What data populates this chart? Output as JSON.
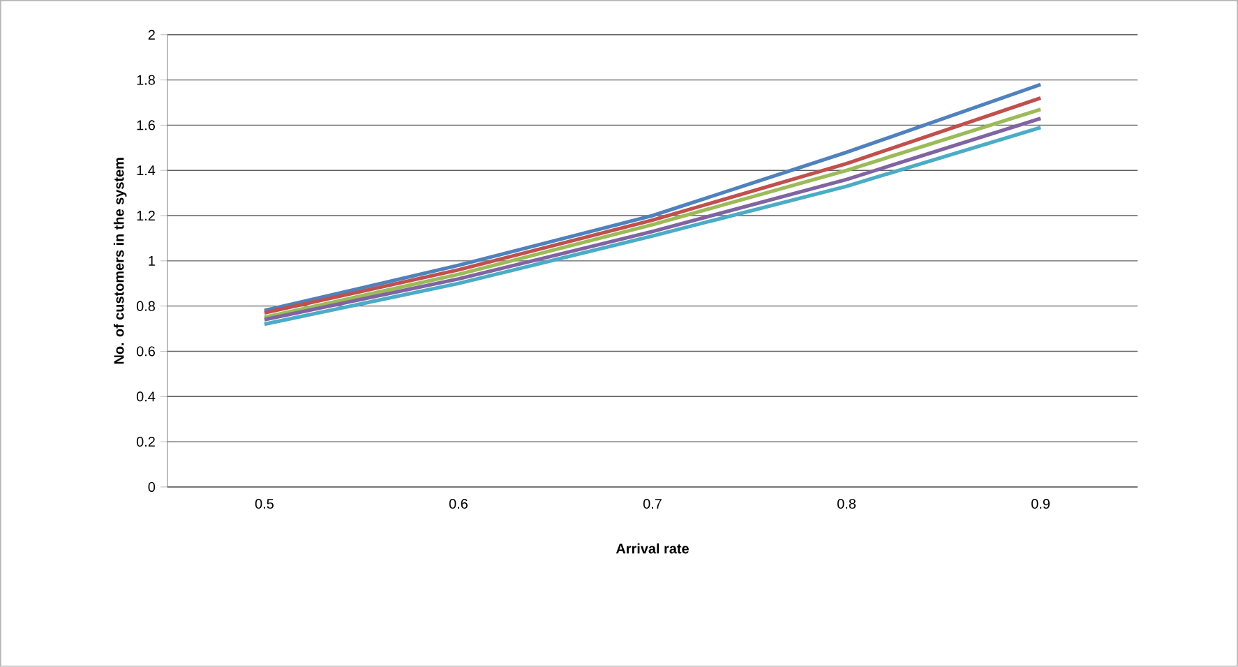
{
  "chart_data": {
    "type": "line",
    "xlabel": "Arrival rate",
    "ylabel": "No. of customers in the system",
    "categories": [
      "0.5",
      "0.6",
      "0.7",
      "0.8",
      "0.9"
    ],
    "series": [
      {
        "color": "#4f81bd",
        "values": [
          0.78,
          0.98,
          1.2,
          1.48,
          1.78
        ]
      },
      {
        "color": "#c0504d",
        "values": [
          0.77,
          0.96,
          1.18,
          1.43,
          1.72
        ]
      },
      {
        "color": "#9bbb59",
        "values": [
          0.75,
          0.94,
          1.16,
          1.4,
          1.67
        ]
      },
      {
        "color": "#8064a2",
        "values": [
          0.74,
          0.92,
          1.13,
          1.36,
          1.63
        ]
      },
      {
        "color": "#4bacc6",
        "values": [
          0.72,
          0.9,
          1.11,
          1.33,
          1.59
        ]
      }
    ],
    "ylim": [
      0,
      2
    ],
    "yticks": [
      0,
      0.2,
      0.4,
      0.6,
      0.8,
      1,
      1.2,
      1.4,
      1.6,
      1.8,
      2
    ],
    "grid": "y",
    "marker": "none",
    "line_style": "solid"
  }
}
